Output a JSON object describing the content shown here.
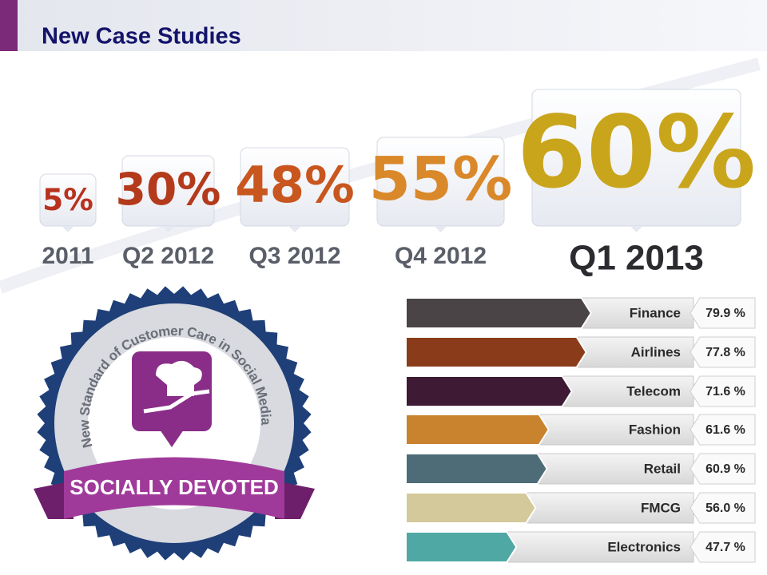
{
  "title": "New Case Studies",
  "badge": {
    "arc_text": "New Standard of Customer Care in Social Media",
    "ribbon_text": "SOCIALLY DEVOTED"
  },
  "chart_data": [
    {
      "type": "milestones",
      "categories": [
        "2011",
        "Q2 2012",
        "Q3 2012",
        "Q4 2012",
        "Q1 2013"
      ],
      "values": [
        5,
        30,
        48,
        55,
        60
      ],
      "value_labels": [
        "5%",
        "30%",
        "48%",
        "55%",
        "60%"
      ],
      "colors": [
        "#b8321e",
        "#b43a1c",
        "#c8561e",
        "#d9882a",
        "#c9a51c"
      ]
    },
    {
      "type": "bar",
      "categories": [
        "Finance",
        "Airlines",
        "Telecom",
        "Fashion",
        "Retail",
        "FMCG",
        "Electronics"
      ],
      "values": [
        79.9,
        77.8,
        71.6,
        61.6,
        60.9,
        56.0,
        47.7
      ],
      "value_labels": [
        "79.9 %",
        "77.8 %",
        "71.6 %",
        "61.6 %",
        "60.9 %",
        "56.0 %",
        "47.7 %"
      ],
      "colors": [
        "#4a4446",
        "#8a3c1a",
        "#3e1a34",
        "#c9832e",
        "#4d6c78",
        "#d4c99a",
        "#4fa8a4"
      ]
    }
  ]
}
